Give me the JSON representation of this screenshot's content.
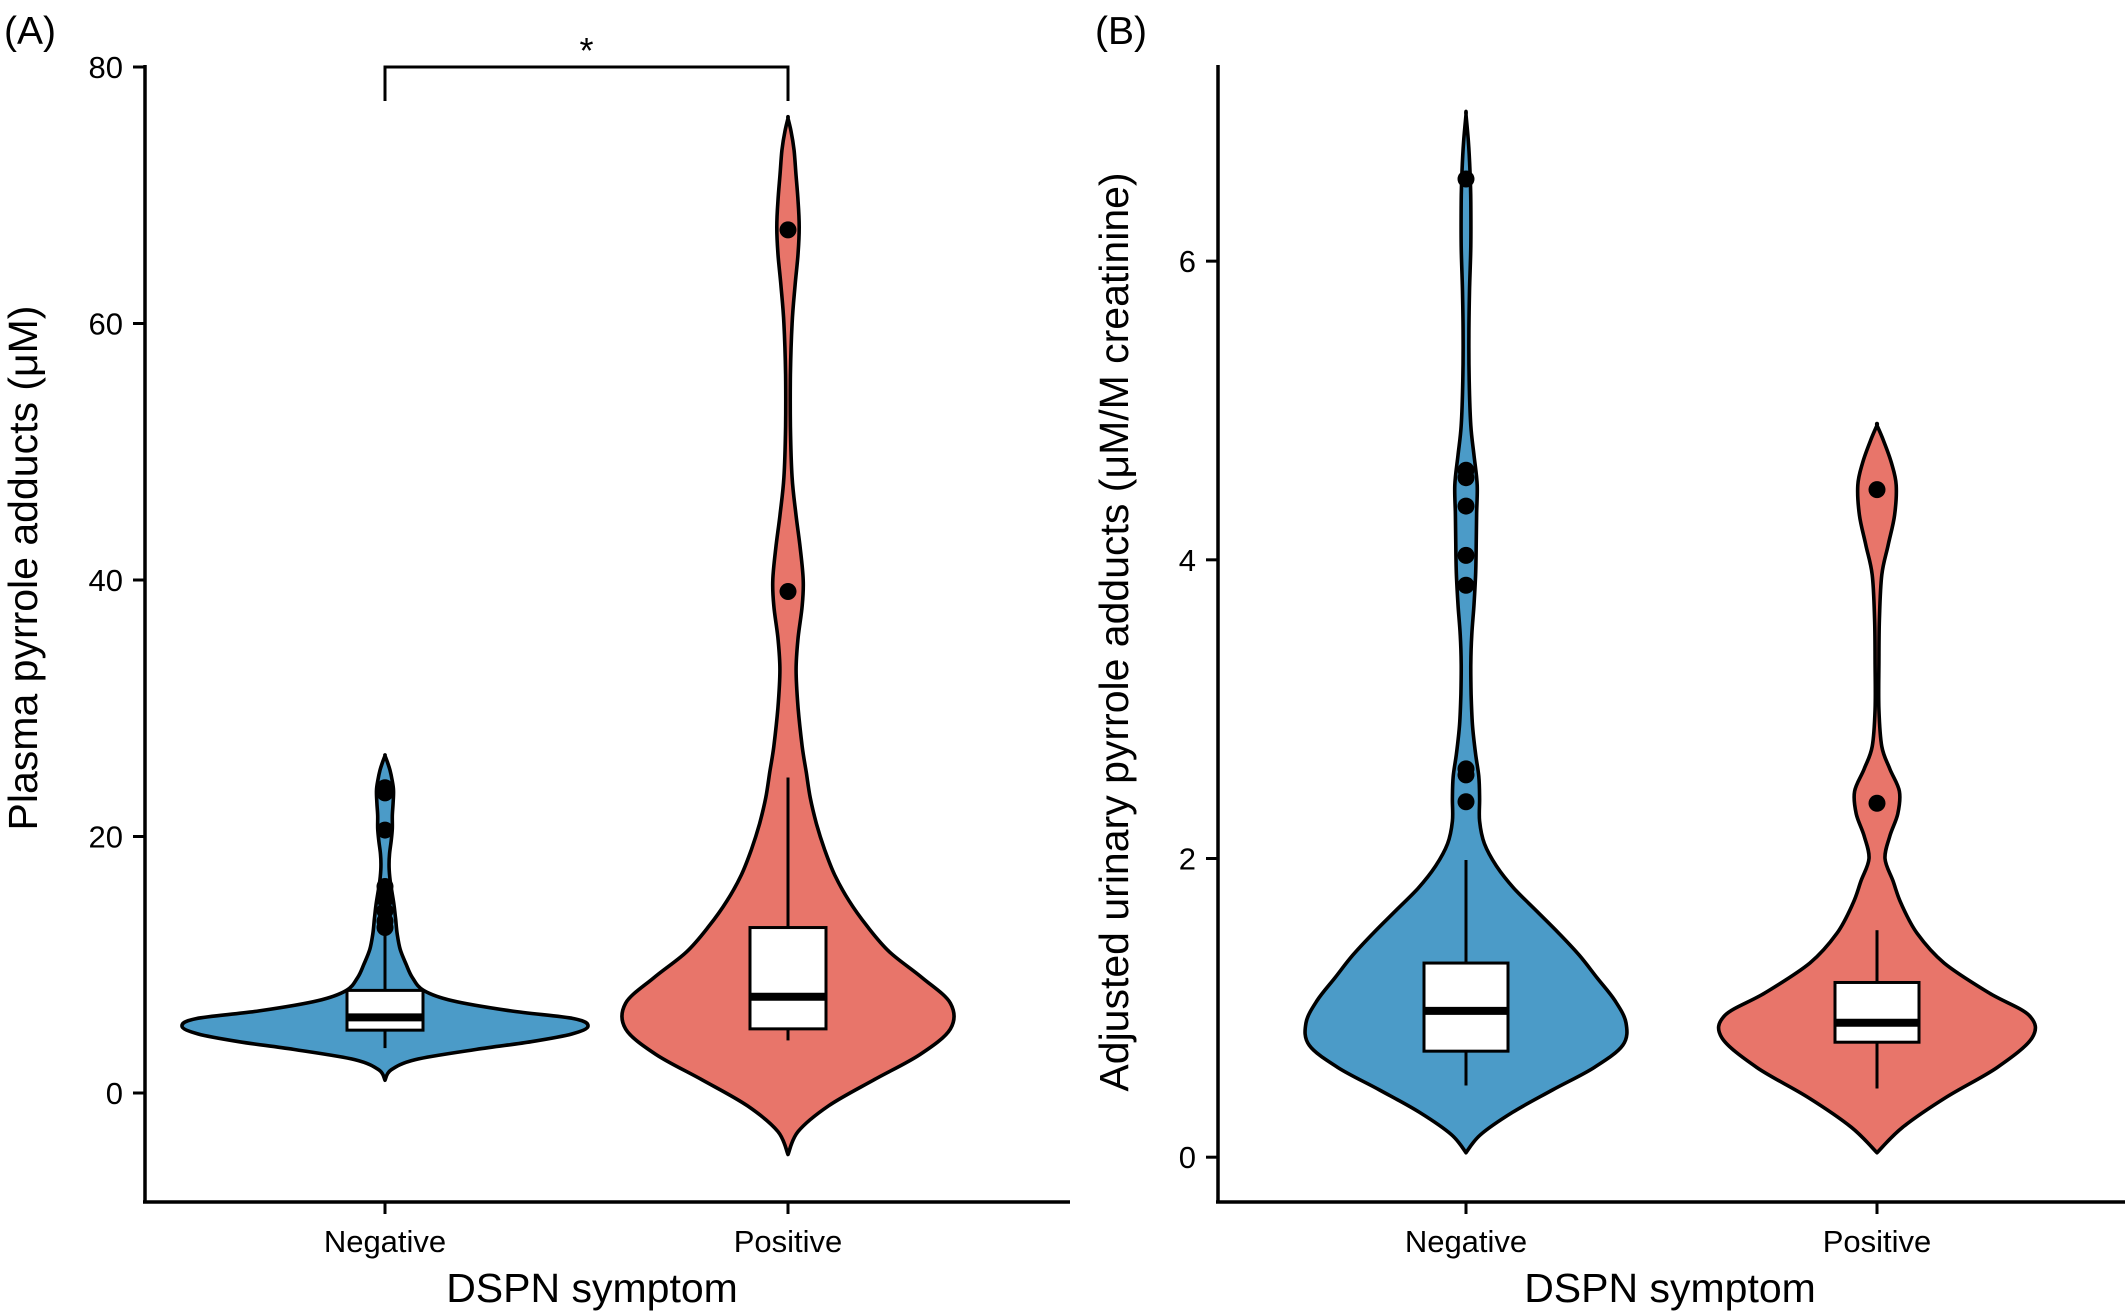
{
  "chart_data": [
    {
      "type": "violin",
      "panel_label": "(A)",
      "title": "",
      "xlabel": "DSPN symptom",
      "ylabel": "Plasma pyrrole adducts (μM)",
      "ylim": [
        -8.5,
        80
      ],
      "yticks": [
        0,
        20,
        40,
        60,
        80
      ],
      "categories": [
        "Negative",
        "Positive"
      ],
      "colors": [
        "#4B9BC8",
        "#E8756A"
      ],
      "grid": false,
      "legend": "none",
      "series": [
        {
          "category": "Negative",
          "color": "#4B9BC8",
          "box": {
            "q1": 4.9,
            "median": 5.9,
            "q3": 8.0,
            "whisker_low": 3.5,
            "whisker_high": 12.4
          },
          "outliers": [
            12.9,
            13.4,
            14.2,
            15.1,
            16.1,
            20.5,
            23.4,
            23.8
          ],
          "violin": {
            "y": [
              1.0,
              1.8,
              2.6,
              3.4,
              4.0,
              4.6,
              5.2,
              5.8,
              6.4,
              7.2,
              8.0,
              9.0,
              10.0,
              11.2,
              12.4,
              13.6,
              14.6,
              15.6,
              16.6,
              17.6,
              18.6,
              19.6,
              20.6,
              21.6,
              22.6,
              23.6,
              24.4,
              25.2,
              25.8,
              26.3
            ],
            "half_width": [
              0.0,
              0.03,
              0.15,
              0.45,
              0.72,
              0.92,
              1.0,
              0.93,
              0.62,
              0.33,
              0.19,
              0.135,
              0.105,
              0.075,
              0.06,
              0.052,
              0.045,
              0.035,
              0.025,
              0.02,
              0.022,
              0.03,
              0.036,
              0.036,
              0.04,
              0.042,
              0.035,
              0.024,
              0.012,
              0.0
            ]
          }
        },
        {
          "category": "Positive",
          "color": "#E8756A",
          "box": {
            "q1": 5.0,
            "median": 7.5,
            "q3": 12.9,
            "whisker_low": 4.1,
            "whisker_high": 24.6
          },
          "outliers": [
            39.1,
            67.3
          ],
          "violin": {
            "y": [
              -4.8,
              -3.0,
              -1.0,
              1.0,
              3.0,
              5.0,
              7.0,
              9.0,
              11.0,
              13.0,
              15.0,
              17.0,
              19.0,
              21.0,
              23.0,
              25.0,
              27.0,
              30.0,
              33.0,
              35.5,
              38.0,
              40.0,
              42.5,
              45.0,
              48.0,
              52.0,
              56.0,
              60.0,
              63.0,
              65.5,
              67.5,
              69.5,
              71.5,
              73.5,
              75.0,
              76.0
            ],
            "half_width": [
              0.0,
              0.05,
              0.2,
              0.42,
              0.65,
              0.8,
              0.8,
              0.66,
              0.5,
              0.39,
              0.3,
              0.23,
              0.18,
              0.14,
              0.11,
              0.09,
              0.07,
              0.05,
              0.04,
              0.05,
              0.07,
              0.075,
              0.06,
              0.04,
              0.02,
              0.012,
              0.012,
              0.02,
              0.035,
              0.05,
              0.055,
              0.05,
              0.04,
              0.03,
              0.015,
              0.0
            ]
          }
        }
      ],
      "annotations": [
        {
          "type": "significance-bracket",
          "from": "Negative",
          "to": "Positive",
          "y": 80,
          "text": "*"
        }
      ]
    },
    {
      "type": "violin",
      "panel_label": "(B)",
      "title": "",
      "xlabel": "DSPN symptom",
      "ylabel": "Adjusted urinary pyrrole adducts (μM/M creatinine)",
      "ylim": [
        -0.3,
        7.3
      ],
      "yticks": [
        0,
        2,
        4,
        6
      ],
      "categories": [
        "Negative",
        "Positive"
      ],
      "colors": [
        "#4B9BC8",
        "#E8756A"
      ],
      "grid": false,
      "legend": "none",
      "series": [
        {
          "category": "Negative",
          "color": "#4B9BC8",
          "box": {
            "q1": 0.71,
            "median": 0.98,
            "q3": 1.3,
            "whisker_low": 0.48,
            "whisker_high": 1.99
          },
          "outliers": [
            2.38,
            2.56,
            2.6,
            3.83,
            4.03,
            4.36,
            4.55,
            4.6,
            6.55
          ],
          "violin": {
            "y": [
              0.03,
              0.15,
              0.3,
              0.45,
              0.6,
              0.75,
              0.9,
              1.05,
              1.2,
              1.35,
              1.5,
              1.65,
              1.8,
              1.95,
              2.1,
              2.25,
              2.4,
              2.55,
              2.7,
              2.9,
              3.1,
              3.3,
              3.5,
              3.7,
              3.9,
              4.1,
              4.3,
              4.5,
              4.7,
              4.9,
              5.2,
              5.5,
              5.8,
              6.1,
              6.4,
              6.6,
              6.8,
              6.98
            ],
            "half_width": [
              0.0,
              0.09,
              0.29,
              0.54,
              0.8,
              0.98,
              1.0,
              0.93,
              0.82,
              0.71,
              0.58,
              0.44,
              0.3,
              0.19,
              0.115,
              0.085,
              0.085,
              0.08,
              0.06,
              0.04,
              0.032,
              0.03,
              0.036,
              0.05,
              0.06,
              0.064,
              0.066,
              0.07,
              0.05,
              0.03,
              0.02,
              0.018,
              0.022,
              0.03,
              0.03,
              0.025,
              0.015,
              0.0
            ]
          }
        },
        {
          "category": "Positive",
          "color": "#E8756A",
          "box": {
            "q1": 0.77,
            "median": 0.9,
            "q3": 1.17,
            "whisker_low": 0.46,
            "whisker_high": 1.52
          },
          "outliers": [
            2.37,
            4.47
          ],
          "violin": {
            "y": [
              0.03,
              0.2,
              0.4,
              0.6,
              0.8,
              0.95,
              1.1,
              1.3,
              1.5,
              1.7,
              1.85,
              2.0,
              2.15,
              2.3,
              2.45,
              2.6,
              2.75,
              3.0,
              3.3,
              3.6,
              3.9,
              4.1,
              4.3,
              4.5,
              4.65,
              4.8,
              4.9
            ],
            "half_width": [
              0.0,
              0.16,
              0.43,
              0.75,
              0.97,
              0.95,
              0.7,
              0.42,
              0.25,
              0.15,
              0.1,
              0.05,
              0.08,
              0.13,
              0.14,
              0.08,
              0.03,
              0.012,
              0.012,
              0.015,
              0.03,
              0.07,
              0.11,
              0.12,
              0.09,
              0.04,
              0.0
            ]
          }
        }
      ],
      "annotations": []
    }
  ]
}
